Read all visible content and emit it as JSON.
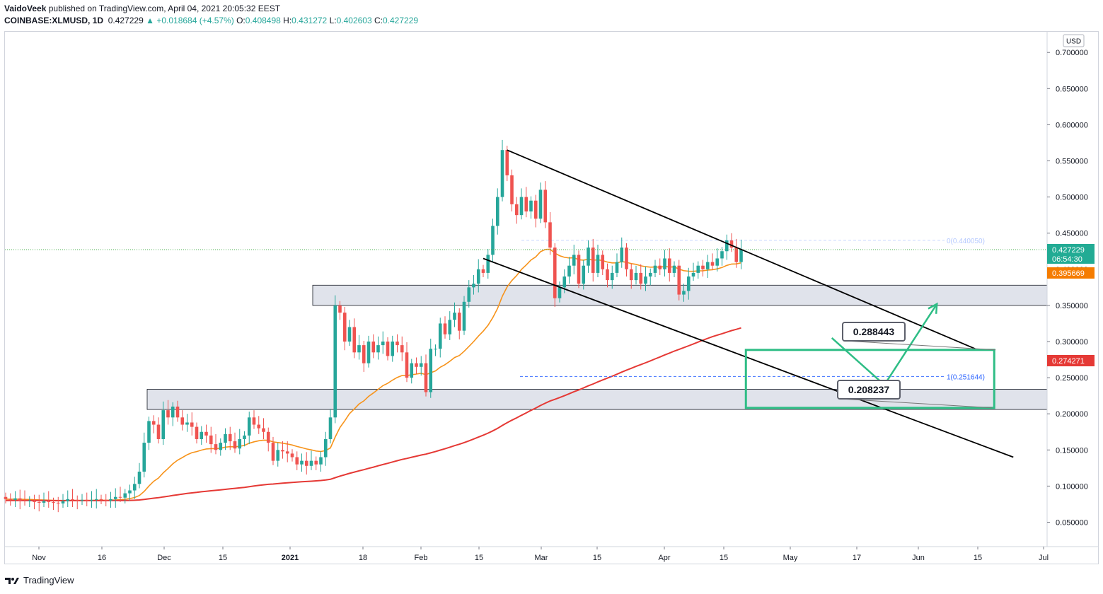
{
  "header": {
    "author": "VaidoVeek",
    "published_text": "published on TradingView.com, April 04, 2021 20:05:32 EEST",
    "symbol": "COINBASE:XLMUSD, 1D",
    "last": "0.427229",
    "change": "+0.018684 (+4.57%)",
    "o_label": "O:",
    "o_value": "0.408498",
    "h_label": "H:",
    "h_value": "0.431272",
    "l_label": "L:",
    "l_value": "0.402603",
    "c_label": "C:",
    "c_value": "0.427229"
  },
  "footer": {
    "brand": "TradingView",
    "logo_icon": "tradingview-logo-icon"
  },
  "colors": {
    "up": "#26a69a",
    "down": "#ef5350",
    "ema": "#f7931a",
    "sma": "#e53935",
    "box": "#2ebd85",
    "zone_fill": "#e0e3eb",
    "fib": "#2962ff",
    "price_line": "#4caf50"
  },
  "chart_data": {
    "type": "candlestick",
    "currency": "USD",
    "y_ticks": [
      "0.050000",
      "0.100000",
      "0.150000",
      "0.200000",
      "0.250000",
      "0.300000",
      "0.350000",
      "0.400000",
      "0.450000",
      "0.500000",
      "0.550000",
      "0.600000",
      "0.650000",
      "0.700000"
    ],
    "x_ticks": [
      "Nov",
      "16",
      "Dec",
      "15",
      "2021",
      "18",
      "Feb",
      "15",
      "Mar",
      "15",
      "Apr",
      "15",
      "May",
      "17",
      "Jun",
      "15",
      "Jul"
    ],
    "ylim": [
      0.0,
      0.72
    ],
    "last_price": {
      "value": "0.427229",
      "countdown": "06:54:30"
    },
    "ema_label": "0.395669",
    "sma_label": "0.274271",
    "annotations": {
      "upper_box_value": "0.288443",
      "lower_box_value": "0.208237"
    },
    "fib_levels": [
      {
        "text": "0(0.440050)",
        "value": 0.44005
      },
      {
        "text": "1(0.251644)",
        "value": 0.251644
      }
    ],
    "support_zones": [
      [
        0.35,
        0.378
      ],
      [
        0.206,
        0.234
      ]
    ],
    "channel": {
      "upper": [
        [
          "2021-02-13",
          0.565
        ],
        [
          "2021-05-22",
          0.29
        ]
      ],
      "lower": [
        [
          "2021-02-08",
          0.415
        ],
        [
          "2021-05-30",
          0.14
        ]
      ]
    },
    "projection": [
      [
        "2021-04-22",
        0.305
      ],
      [
        "2021-05-03",
        0.24
      ],
      [
        "2021-05-14",
        0.352
      ]
    ],
    "target_box": {
      "start": "2021-04-04",
      "end": "2021-05-26",
      "top": 0.288443,
      "bottom": 0.208237
    },
    "candles": [
      [
        0.085,
        0.082
      ],
      [
        0.082,
        0.081
      ],
      [
        0.081,
        0.083
      ],
      [
        0.083,
        0.08
      ],
      [
        0.08,
        0.079
      ],
      [
        0.079,
        0.08
      ],
      [
        0.08,
        0.078
      ],
      [
        0.078,
        0.077
      ],
      [
        0.077,
        0.079
      ],
      [
        0.079,
        0.078
      ],
      [
        0.078,
        0.077
      ],
      [
        0.077,
        0.076
      ],
      [
        0.076,
        0.079
      ],
      [
        0.079,
        0.082
      ],
      [
        0.082,
        0.081
      ],
      [
        0.081,
        0.08
      ],
      [
        0.08,
        0.081
      ],
      [
        0.081,
        0.08
      ],
      [
        0.08,
        0.081
      ],
      [
        0.081,
        0.082
      ],
      [
        0.082,
        0.081
      ],
      [
        0.081,
        0.08
      ],
      [
        0.08,
        0.082
      ],
      [
        0.082,
        0.085
      ],
      [
        0.085,
        0.084
      ],
      [
        0.084,
        0.09
      ],
      [
        0.09,
        0.094
      ],
      [
        0.094,
        0.103
      ],
      [
        0.103,
        0.12
      ],
      [
        0.12,
        0.16
      ],
      [
        0.16,
        0.19
      ],
      [
        0.19,
        0.185
      ],
      [
        0.185,
        0.165
      ],
      [
        0.165,
        0.205
      ],
      [
        0.205,
        0.195
      ],
      [
        0.195,
        0.21
      ],
      [
        0.21,
        0.195
      ],
      [
        0.195,
        0.185
      ],
      [
        0.185,
        0.188
      ],
      [
        0.188,
        0.182
      ],
      [
        0.182,
        0.165
      ],
      [
        0.165,
        0.175
      ],
      [
        0.175,
        0.17
      ],
      [
        0.17,
        0.158
      ],
      [
        0.158,
        0.15
      ],
      [
        0.15,
        0.16
      ],
      [
        0.16,
        0.172
      ],
      [
        0.172,
        0.162
      ],
      [
        0.162,
        0.152
      ],
      [
        0.152,
        0.165
      ],
      [
        0.165,
        0.17
      ],
      [
        0.17,
        0.195
      ],
      [
        0.195,
        0.185
      ],
      [
        0.185,
        0.18
      ],
      [
        0.18,
        0.175
      ],
      [
        0.175,
        0.16
      ],
      [
        0.16,
        0.135
      ],
      [
        0.135,
        0.15
      ],
      [
        0.15,
        0.148
      ],
      [
        0.148,
        0.145
      ],
      [
        0.145,
        0.14
      ],
      [
        0.14,
        0.13
      ],
      [
        0.13,
        0.135
      ],
      [
        0.135,
        0.128
      ],
      [
        0.128,
        0.135
      ],
      [
        0.135,
        0.13
      ],
      [
        0.13,
        0.14
      ],
      [
        0.14,
        0.165
      ],
      [
        0.165,
        0.195
      ],
      [
        0.195,
        0.35
      ],
      [
        0.35,
        0.34
      ],
      [
        0.34,
        0.3
      ],
      [
        0.3,
        0.32
      ],
      [
        0.32,
        0.285
      ],
      [
        0.285,
        0.295
      ],
      [
        0.295,
        0.27
      ],
      [
        0.27,
        0.3
      ],
      [
        0.3,
        0.285
      ],
      [
        0.285,
        0.295
      ],
      [
        0.295,
        0.3
      ],
      [
        0.3,
        0.28
      ],
      [
        0.28,
        0.3
      ],
      [
        0.3,
        0.295
      ],
      [
        0.295,
        0.285
      ],
      [
        0.285,
        0.25
      ],
      [
        0.25,
        0.27
      ],
      [
        0.27,
        0.265
      ],
      [
        0.265,
        0.27
      ],
      [
        0.27,
        0.23
      ],
      [
        0.23,
        0.29
      ],
      [
        0.29,
        0.29
      ],
      [
        0.29,
        0.325
      ],
      [
        0.325,
        0.31
      ],
      [
        0.31,
        0.33
      ],
      [
        0.33,
        0.34
      ],
      [
        0.34,
        0.315
      ],
      [
        0.315,
        0.355
      ],
      [
        0.355,
        0.375
      ],
      [
        0.375,
        0.38
      ],
      [
        0.38,
        0.4
      ],
      [
        0.4,
        0.395
      ],
      [
        0.395,
        0.42
      ],
      [
        0.42,
        0.46
      ],
      [
        0.46,
        0.5
      ],
      [
        0.5,
        0.565
      ],
      [
        0.565,
        0.53
      ],
      [
        0.53,
        0.49
      ],
      [
        0.49,
        0.475
      ],
      [
        0.475,
        0.5
      ],
      [
        0.5,
        0.48
      ],
      [
        0.48,
        0.495
      ],
      [
        0.495,
        0.47
      ],
      [
        0.47,
        0.51
      ],
      [
        0.51,
        0.465
      ],
      [
        0.465,
        0.43
      ],
      [
        0.43,
        0.36
      ],
      [
        0.36,
        0.375
      ],
      [
        0.375,
        0.39
      ],
      [
        0.39,
        0.405
      ],
      [
        0.405,
        0.42
      ],
      [
        0.42,
        0.38
      ],
      [
        0.38,
        0.405
      ],
      [
        0.405,
        0.43
      ],
      [
        0.43,
        0.395
      ],
      [
        0.395,
        0.42
      ],
      [
        0.42,
        0.4
      ],
      [
        0.4,
        0.385
      ],
      [
        0.385,
        0.395
      ],
      [
        0.395,
        0.41
      ],
      [
        0.41,
        0.43
      ],
      [
        0.43,
        0.4
      ],
      [
        0.4,
        0.385
      ],
      [
        0.385,
        0.395
      ],
      [
        0.395,
        0.38
      ],
      [
        0.38,
        0.39
      ],
      [
        0.39,
        0.395
      ],
      [
        0.395,
        0.405
      ],
      [
        0.405,
        0.4
      ],
      [
        0.4,
        0.415
      ],
      [
        0.415,
        0.395
      ],
      [
        0.395,
        0.405
      ],
      [
        0.405,
        0.365
      ],
      [
        0.365,
        0.37
      ],
      [
        0.37,
        0.39
      ],
      [
        0.39,
        0.395
      ],
      [
        0.395,
        0.405
      ],
      [
        0.405,
        0.4
      ],
      [
        0.4,
        0.41
      ],
      [
        0.41,
        0.405
      ],
      [
        0.405,
        0.415
      ],
      [
        0.415,
        0.425
      ],
      [
        0.425,
        0.44
      ],
      [
        0.44,
        0.43
      ],
      [
        0.43,
        0.41
      ],
      [
        0.41,
        0.427
      ]
    ]
  }
}
